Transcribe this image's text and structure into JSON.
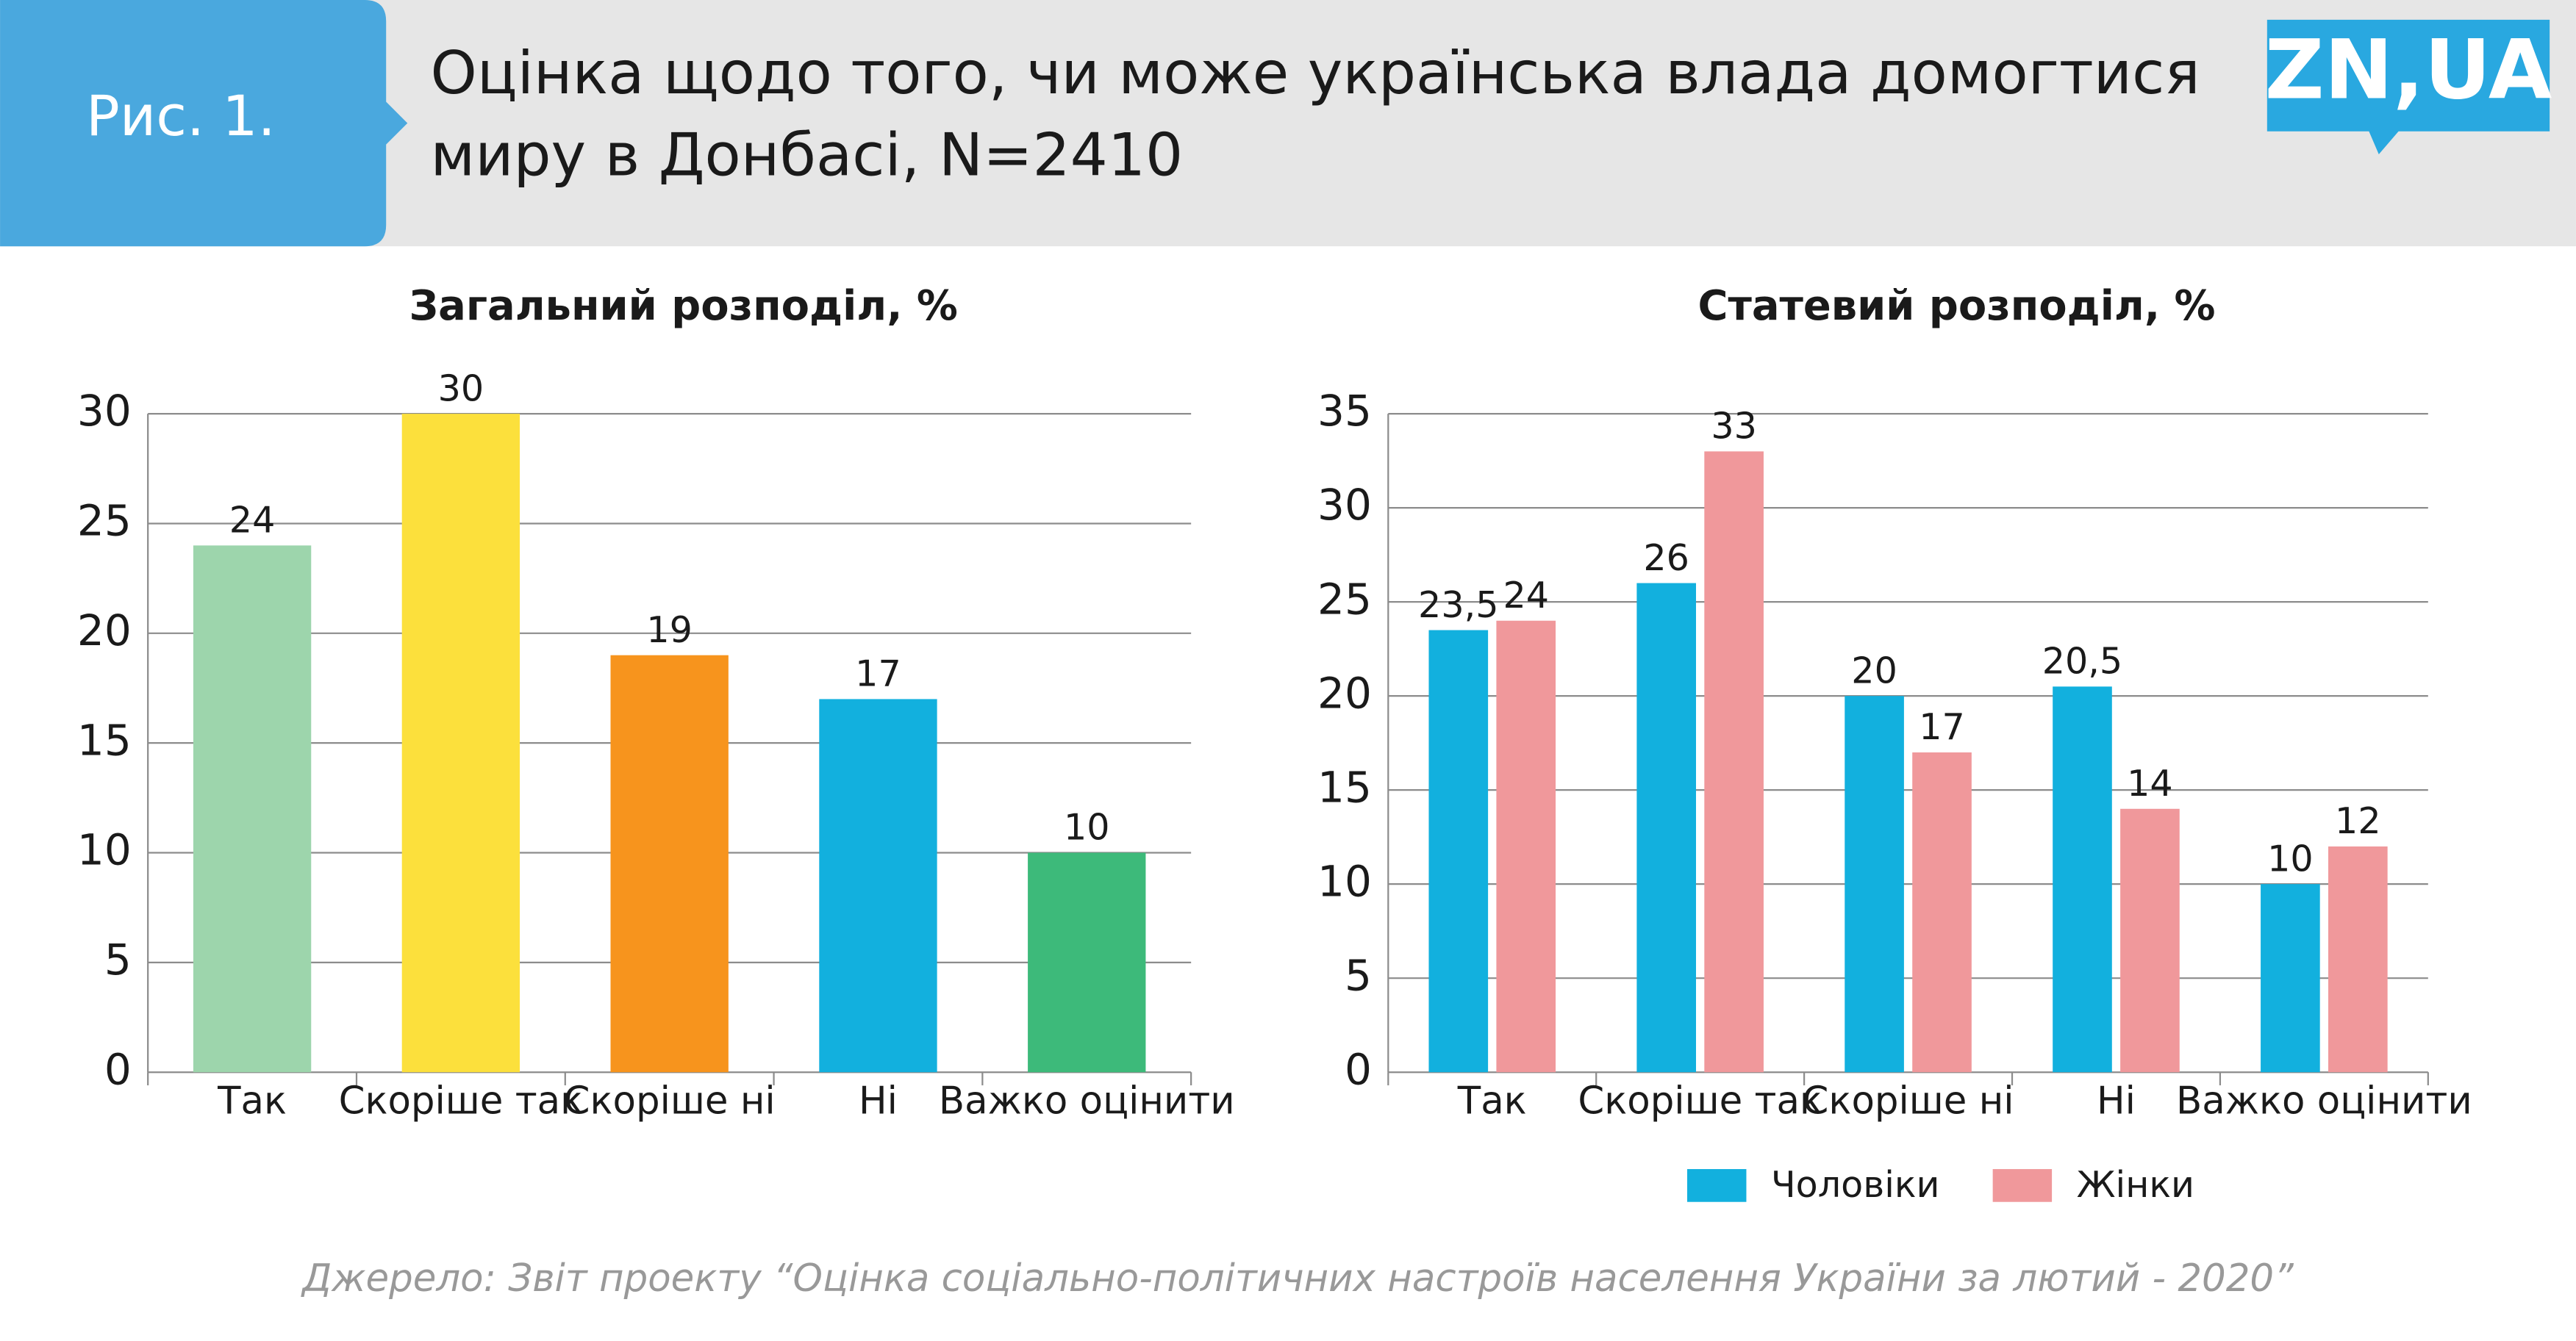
{
  "header": {
    "figure": "Рис. 1.",
    "title": [
      "Оцінка щодо того, чи може українська влада домогтися",
      "миру в Донбасі, N=2410"
    ],
    "logo": "ZN,UA"
  },
  "chart_data": [
    {
      "type": "bar",
      "title": "Загальний розподіл, %",
      "categories": [
        "Так",
        "Скоріше так",
        "Скоріше ні",
        "Ні",
        "Важко оцінити"
      ],
      "values": [
        24,
        30,
        19,
        17,
        10
      ],
      "colors": [
        "#9dd5ac",
        "#fce03c",
        "#f7941d",
        "#12b0de",
        "#3dba7a"
      ],
      "ylim": [
        0,
        30
      ],
      "yticks": [
        0,
        5,
        10,
        15,
        20,
        25,
        30
      ],
      "grid": true
    },
    {
      "type": "bar",
      "title": "Статевий розподіл, %",
      "categories": [
        "Так",
        "Скоріше так",
        "Скоріше ні",
        "Ні",
        "Важко оцінити"
      ],
      "series": [
        {
          "name": "Чоловіки",
          "color": "#12b0de",
          "values": [
            23.5,
            26,
            20,
            20.5,
            10
          ],
          "value_labels": [
            "23,5",
            "26",
            "20",
            "20,5",
            "10"
          ]
        },
        {
          "name": "Жінки",
          "color": "#f0989b",
          "values": [
            24,
            33,
            17,
            14,
            12
          ]
        }
      ],
      "ylim": [
        0,
        35
      ],
      "yticks": [
        0,
        5,
        10,
        15,
        20,
        25,
        30,
        35
      ],
      "grid": true,
      "legend": "bottom"
    }
  ],
  "source": "Джерело: Звіт проекту “Оцінка соціально-політичних настроїв населення України за лютий - 2020”"
}
